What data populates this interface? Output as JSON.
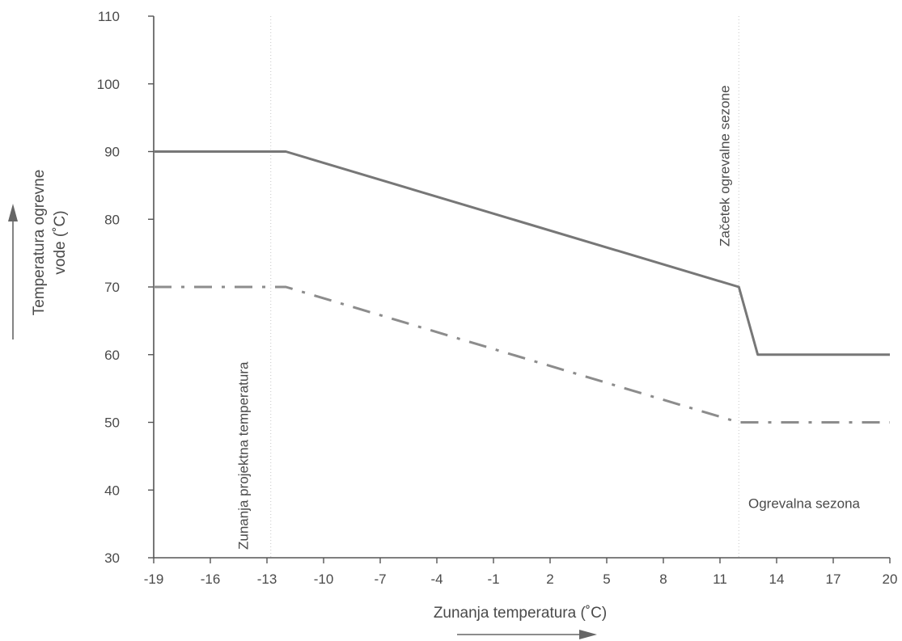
{
  "chart_data": {
    "type": "line",
    "title": "",
    "xlabel": "Zunanja temperatura (˚C)",
    "ylabel_lines": [
      "Temperatura ogrevne",
      "vode (˚C)"
    ],
    "xlim": [
      -19,
      20
    ],
    "ylim": [
      30,
      110
    ],
    "x_ticks": [
      -19,
      -16,
      -13,
      -10,
      -7,
      -4,
      -1,
      2,
      5,
      8,
      11,
      14,
      17,
      20
    ],
    "y_ticks": [
      30,
      40,
      50,
      60,
      70,
      80,
      90,
      100,
      110
    ],
    "grid": false,
    "series": [
      {
        "style": "solid",
        "color": "#777777",
        "points": [
          {
            "x": -19,
            "y": 90
          },
          {
            "x": -12,
            "y": 90
          },
          {
            "x": 12,
            "y": 70
          },
          {
            "x": 13,
            "y": 60
          },
          {
            "x": 20,
            "y": 60
          }
        ]
      },
      {
        "style": "dash-dot",
        "color": "#8c8c8c",
        "points": [
          {
            "x": -19,
            "y": 70
          },
          {
            "x": -12,
            "y": 70
          },
          {
            "x": 12,
            "y": 50
          },
          {
            "x": 20,
            "y": 50
          }
        ]
      }
    ],
    "reference_lines": [
      {
        "x": -12.8,
        "label": "Zunanja projektna  temperatura"
      },
      {
        "x": 12,
        "label": "Začetek ogrevalne sezone"
      }
    ],
    "annotations": [
      {
        "text": "Ogrevalna sezona",
        "x": 12.5,
        "y": 40
      }
    ]
  }
}
